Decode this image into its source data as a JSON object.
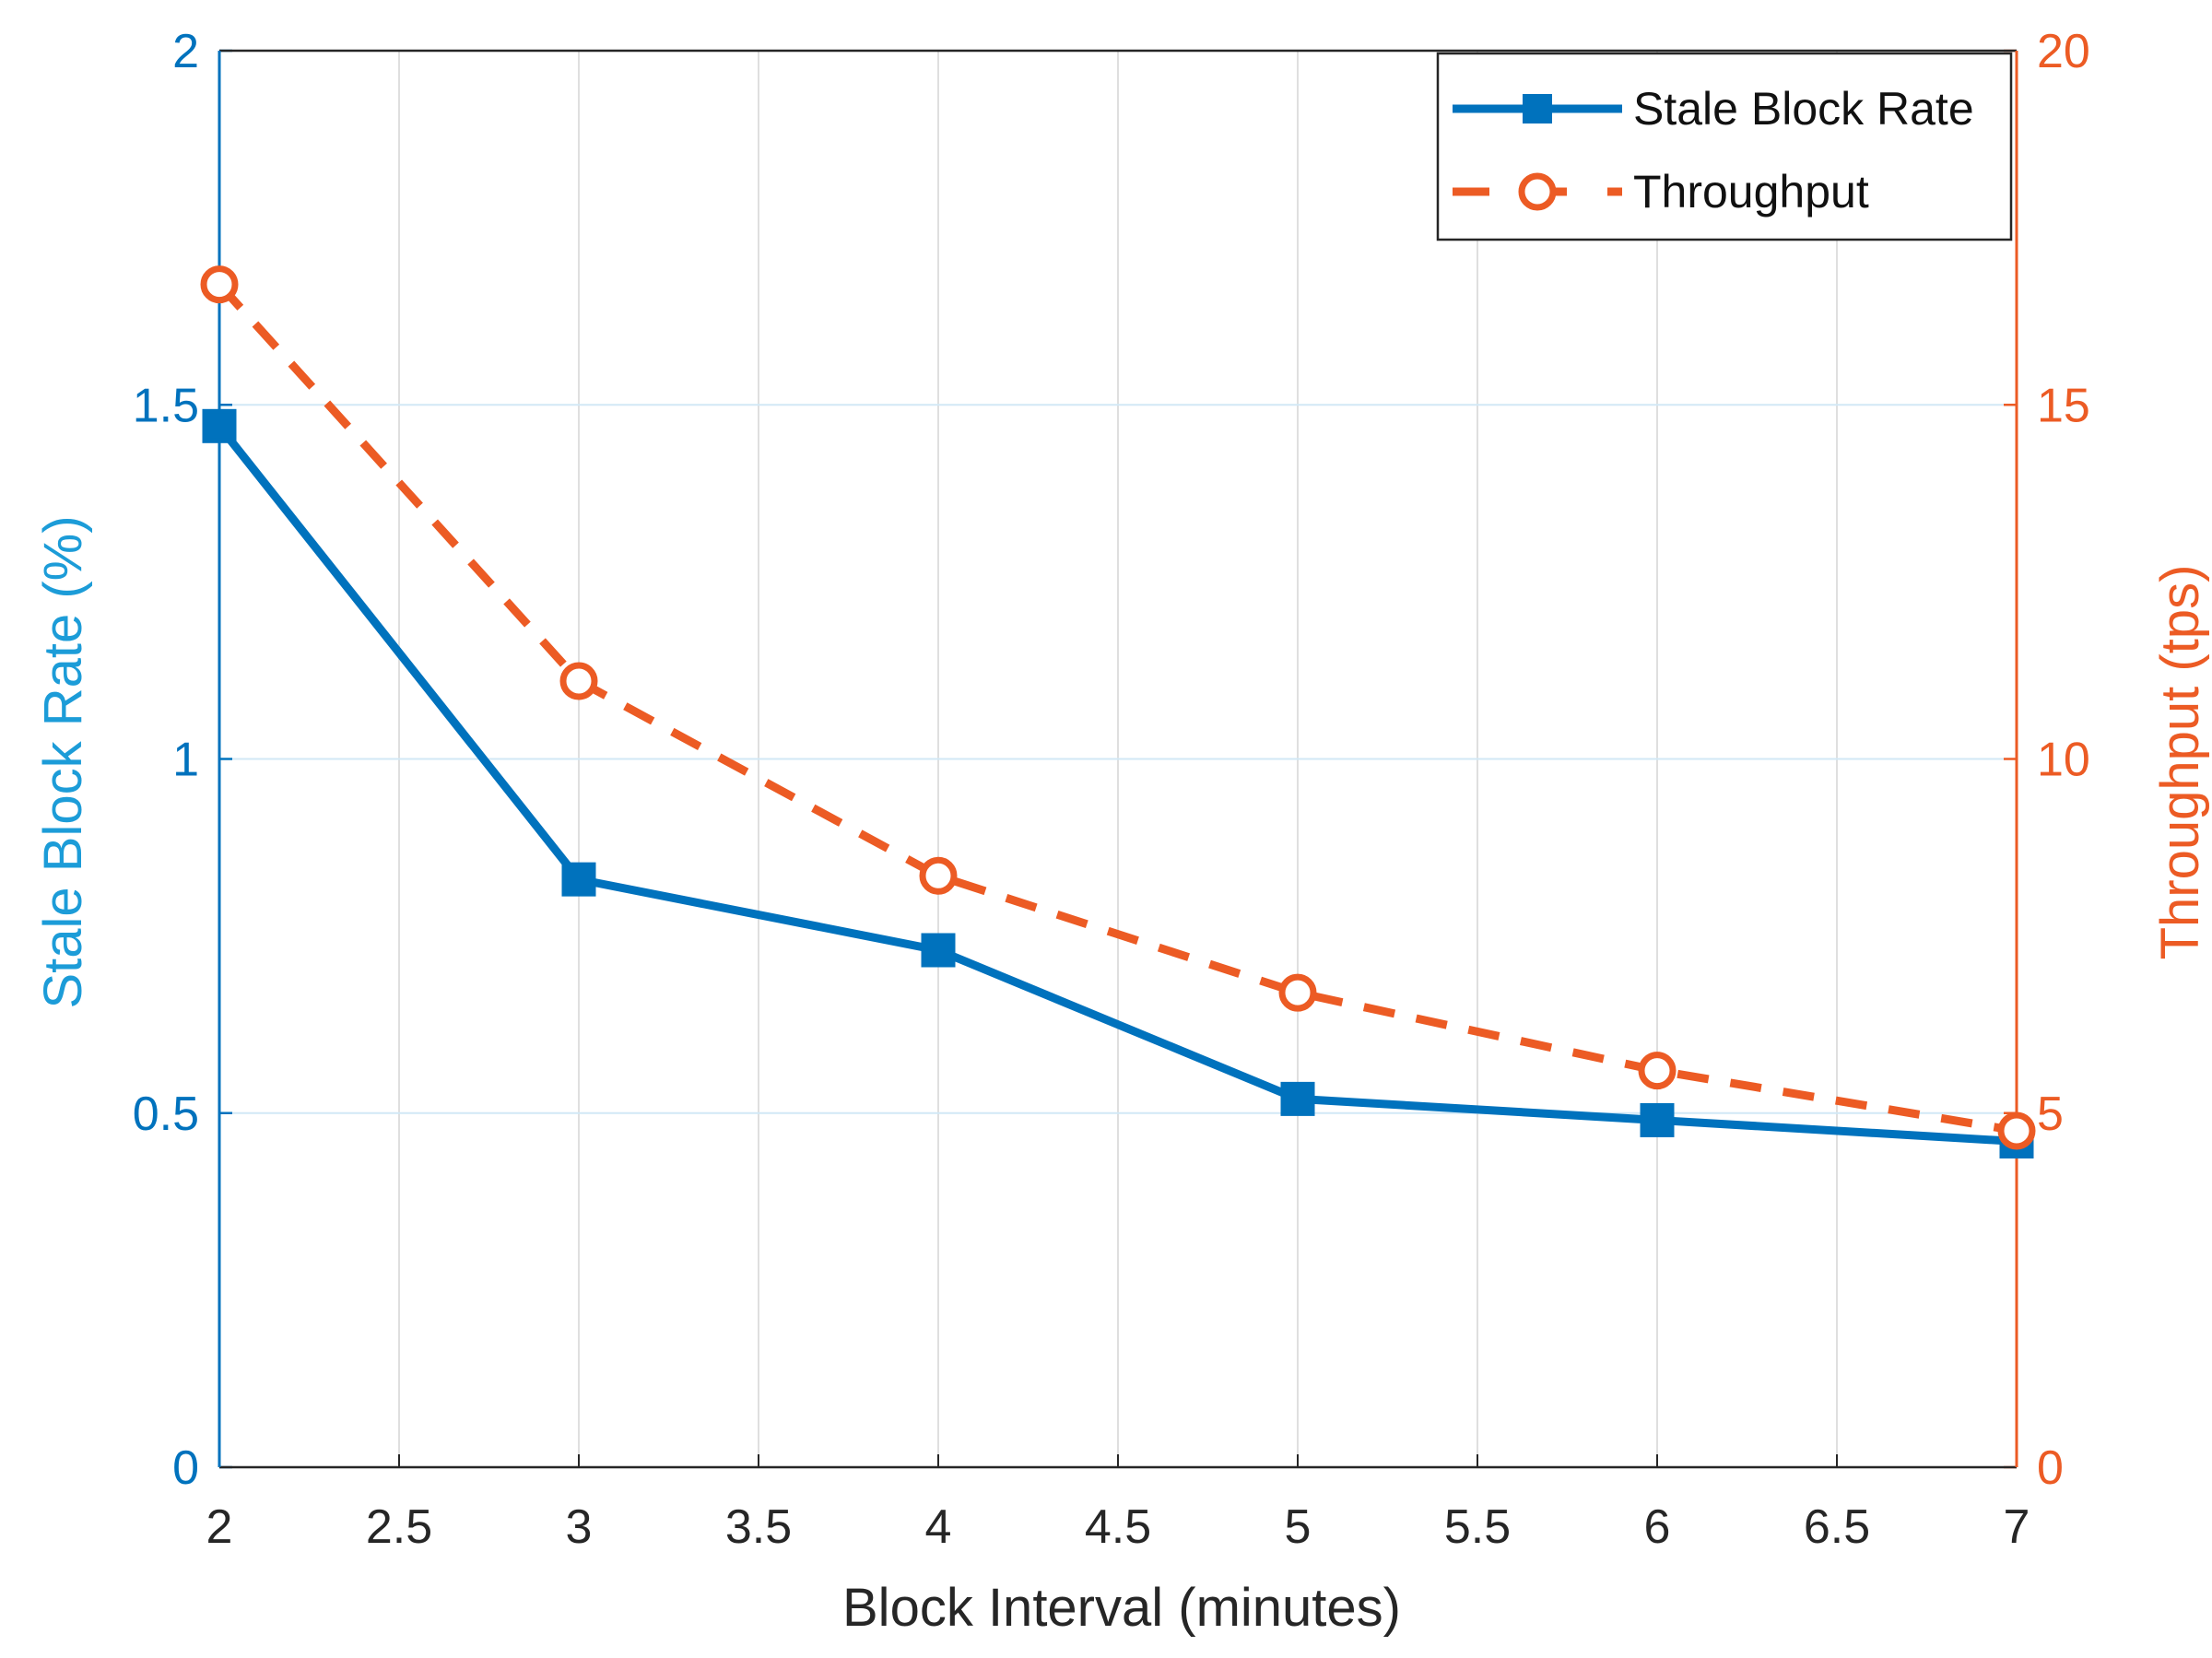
{
  "chart_data": {
    "type": "line",
    "title": "",
    "xlabel": "Block Interval (minutes)",
    "ylabel_left": "Stale Block Rate (%)",
    "ylabel_right": "Throughput (tps)",
    "xlim": [
      2,
      7
    ],
    "ylim_left": [
      0,
      2
    ],
    "ylim_right": [
      0,
      20
    ],
    "x_ticks": [
      "2",
      "2.5",
      "3",
      "3.5",
      "4",
      "4.5",
      "5",
      "5.5",
      "6",
      "6.5",
      "7"
    ],
    "y_left_ticks": [
      "0",
      "0.5",
      "1",
      "1.5",
      "2"
    ],
    "y_right_ticks": [
      "0",
      "5",
      "10",
      "15",
      "20"
    ],
    "grid": true,
    "legend_position": "top-right",
    "x": [
      2,
      3,
      4,
      5,
      6,
      7
    ],
    "series": [
      {
        "name": "Stale Block Rate",
        "axis": "left",
        "values": [
          1.47,
          0.83,
          0.73,
          0.52,
          0.49,
          0.46
        ],
        "color": "#0072BD",
        "line_style": "solid",
        "marker": "square"
      },
      {
        "name": "Throughput",
        "axis": "right",
        "values": [
          16.7,
          11.1,
          8.35,
          6.7,
          5.6,
          4.75
        ],
        "color": "#EC5B24",
        "line_style": "dashed",
        "marker": "circle"
      }
    ]
  }
}
